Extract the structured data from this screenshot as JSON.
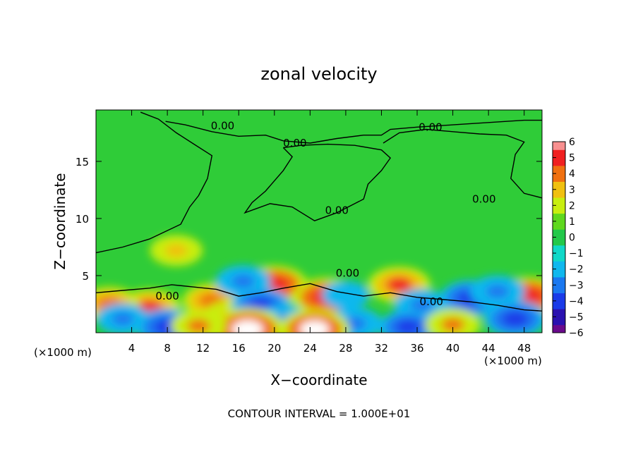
{
  "chart_data": {
    "type": "heatmap",
    "title": "zonal velocity",
    "xlabel": "X−coordinate",
    "ylabel": "Z−coordinate",
    "x_unit": "(×1000 m)",
    "footer": "CONTOUR INTERVAL = 1.000E+01",
    "xlim": [
      0,
      50
    ],
    "ylim": [
      0,
      19.5
    ],
    "x_ticks": [
      4,
      8,
      12,
      16,
      20,
      24,
      28,
      32,
      36,
      40,
      44,
      48
    ],
    "x_tick_labels": [
      "4",
      "8",
      "12",
      "16",
      "20",
      "24",
      "28",
      "32",
      "36",
      "40",
      "44",
      "48"
    ],
    "y_ticks": [
      5,
      10,
      15
    ],
    "y_tick_labels": [
      "5",
      "10",
      "15"
    ],
    "colorbar": {
      "ticks": [
        6,
        5,
        4,
        3,
        2,
        1,
        0,
        -1,
        -2,
        -3,
        -4,
        -5,
        -6
      ],
      "labels": [
        "6",
        "5",
        "4",
        "3",
        "2",
        "1",
        "0",
        "−1",
        "−2",
        "−3",
        "−4",
        "−5",
        "−6"
      ],
      "range": [
        -6,
        6
      ],
      "colors": [
        "#6a0a8c",
        "#2a12b0",
        "#1a3be8",
        "#1a78f0",
        "#10b8ee",
        "#10d8c8",
        "#22c84a",
        "#5fd81e",
        "#c8ee10",
        "#f0c010",
        "#f07010",
        "#f02020",
        "#f89090"
      ]
    },
    "contour_label": "0.00",
    "blobs": [
      {
        "x": 6,
        "z": 2.2,
        "v": 4.5
      },
      {
        "x": 1.5,
        "z": 2.5,
        "v": 4
      },
      {
        "x": 9,
        "z": 7.2,
        "v": 3.2
      },
      {
        "x": 13,
        "z": 2.8,
        "v": 4
      },
      {
        "x": 15,
        "z": 1.5,
        "v": 3
      },
      {
        "x": 20,
        "z": 4.2,
        "v": 5
      },
      {
        "x": 25.8,
        "z": 3.1,
        "v": 5.2
      },
      {
        "x": 34,
        "z": 4.2,
        "v": 4.5
      },
      {
        "x": 48.5,
        "z": 3.2,
        "v": 5
      },
      {
        "x": 16.5,
        "z": 4.5,
        "v": -3.5
      },
      {
        "x": 18.5,
        "z": 2.4,
        "v": -4
      },
      {
        "x": 28,
        "z": 3.3,
        "v": -2.5
      },
      {
        "x": 36.5,
        "z": 2.4,
        "v": -3.5
      },
      {
        "x": 42,
        "z": 3,
        "v": -4.5
      },
      {
        "x": 45,
        "z": 3.6,
        "v": -3.5
      },
      {
        "x": 3,
        "z": 1.2,
        "v": -3.2
      },
      {
        "x": 8,
        "z": 0.5,
        "v": -4.5
      },
      {
        "x": 21,
        "z": 1,
        "v": -3.5
      },
      {
        "x": 29,
        "z": 0.8,
        "v": -3.5
      },
      {
        "x": 35,
        "z": 0.5,
        "v": -4
      },
      {
        "x": 47,
        "z": 1.2,
        "v": -4.5
      },
      {
        "x": 17,
        "z": 0.3,
        "v": 6
      },
      {
        "x": 24.5,
        "z": 0.3,
        "v": 5.5
      },
      {
        "x": 40,
        "z": 0.7,
        "v": 3.5
      },
      {
        "x": 11.5,
        "z": 0.6,
        "v": 3.5
      }
    ],
    "contours": [
      [
        [
          0,
          7
        ],
        [
          3,
          7.5
        ],
        [
          6,
          8.2
        ],
        [
          9.5,
          9.5
        ],
        [
          10.5,
          11
        ],
        [
          11.5,
          12
        ],
        [
          12.5,
          13.5
        ],
        [
          13,
          15.5
        ],
        [
          11,
          16.5
        ],
        [
          9,
          17.5
        ],
        [
          7,
          18.7
        ],
        [
          5,
          19.3
        ]
      ],
      [
        [
          7.8,
          18.5
        ],
        [
          10,
          18.2
        ],
        [
          13,
          17.6
        ],
        [
          16,
          17.2
        ],
        [
          19,
          17.3
        ],
        [
          21,
          16.8
        ],
        [
          24,
          16.6
        ],
        [
          27,
          17
        ],
        [
          30,
          17.3
        ],
        [
          32,
          17.3
        ],
        [
          33,
          17.8
        ],
        [
          36,
          18
        ],
        [
          40,
          18.2
        ],
        [
          44,
          18.4
        ],
        [
          48,
          18.6
        ],
        [
          50,
          18.6
        ]
      ],
      [
        [
          21,
          16.2
        ],
        [
          22,
          15.4
        ],
        [
          21,
          14.2
        ],
        [
          19,
          12.4
        ],
        [
          17.5,
          11.4
        ],
        [
          16.7,
          10.5
        ],
        [
          19.5,
          11.3
        ],
        [
          22,
          11
        ],
        [
          24.5,
          9.8
        ],
        [
          27,
          10.5
        ],
        [
          29,
          11.3
        ],
        [
          30,
          11.7
        ],
        [
          30.5,
          13
        ],
        [
          32,
          14.2
        ],
        [
          33,
          15.3
        ],
        [
          32,
          16
        ],
        [
          29,
          16.4
        ],
        [
          26,
          16.5
        ],
        [
          23,
          16.4
        ],
        [
          21,
          16.2
        ]
      ],
      [
        [
          32.2,
          16.6
        ],
        [
          34,
          17.5
        ],
        [
          37,
          17.8
        ],
        [
          40,
          17.6
        ],
        [
          43,
          17.4
        ],
        [
          46,
          17.3
        ],
        [
          48,
          16.7
        ],
        [
          47,
          15.6
        ],
        [
          46.5,
          13.5
        ],
        [
          48,
          12.2
        ],
        [
          50,
          11.8
        ]
      ],
      [
        [
          0,
          3.5
        ],
        [
          3,
          3.7
        ],
        [
          6,
          3.9
        ],
        [
          8.5,
          4.2
        ],
        [
          11,
          4
        ],
        [
          13.5,
          3.8
        ],
        [
          16,
          3.2
        ],
        [
          18.5,
          3.5
        ],
        [
          21,
          3.9
        ],
        [
          24,
          4.3
        ],
        [
          27,
          3.6
        ],
        [
          30,
          3.2
        ],
        [
          33,
          3.5
        ],
        [
          36,
          3.1
        ],
        [
          39,
          2.9
        ],
        [
          42,
          2.7
        ],
        [
          45,
          2.4
        ],
        [
          48,
          2
        ],
        [
          50,
          1.9
        ]
      ]
    ],
    "contour_labels": [
      {
        "x": 14.2,
        "z": 18.1,
        "text": "0.00"
      },
      {
        "x": 22.3,
        "z": 16.6,
        "text": "0.00"
      },
      {
        "x": 37.5,
        "z": 18.0,
        "text": "0.00"
      },
      {
        "x": 27,
        "z": 10.7,
        "text": "0.00"
      },
      {
        "x": 43.5,
        "z": 11.7,
        "text": "0.00"
      },
      {
        "x": 8,
        "z": 3.2,
        "text": "0.00"
      },
      {
        "x": 37.6,
        "z": 2.7,
        "text": "0.00"
      },
      {
        "x": 28.2,
        "z": 5.2,
        "text": "0.00"
      }
    ]
  }
}
